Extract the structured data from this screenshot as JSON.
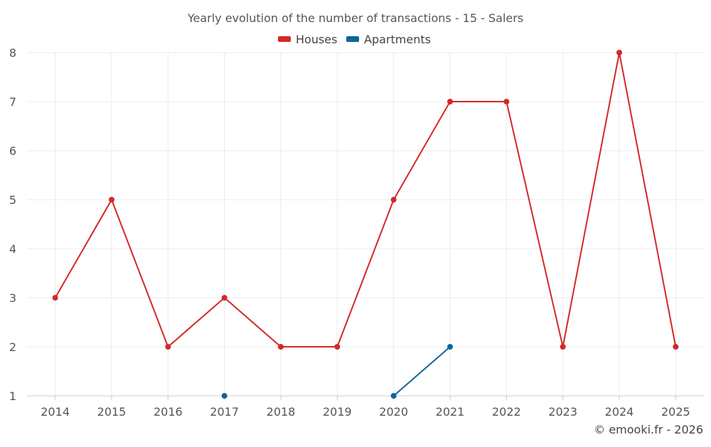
{
  "chart_data": {
    "type": "line",
    "title": "Yearly evolution of the number of transactions - 15 - Salers",
    "xlabel": "",
    "ylabel": "",
    "categories": [
      "2014",
      "2015",
      "2016",
      "2017",
      "2018",
      "2019",
      "2020",
      "2021",
      "2022",
      "2023",
      "2024",
      "2025"
    ],
    "ylim": [
      1,
      8
    ],
    "yticks": [
      1,
      2,
      3,
      4,
      5,
      6,
      7,
      8
    ],
    "grid": true,
    "legend_position": "top-center",
    "series": [
      {
        "name": "Houses",
        "color": "#d42828",
        "values": [
          3,
          5,
          2,
          3,
          2,
          2,
          5,
          7,
          7,
          2,
          8,
          2
        ]
      },
      {
        "name": "Apartments",
        "color": "#0e6597",
        "values": [
          null,
          null,
          null,
          1,
          null,
          null,
          1,
          2,
          null,
          null,
          null,
          null
        ]
      }
    ]
  },
  "credit": "© emooki.fr - 2026"
}
